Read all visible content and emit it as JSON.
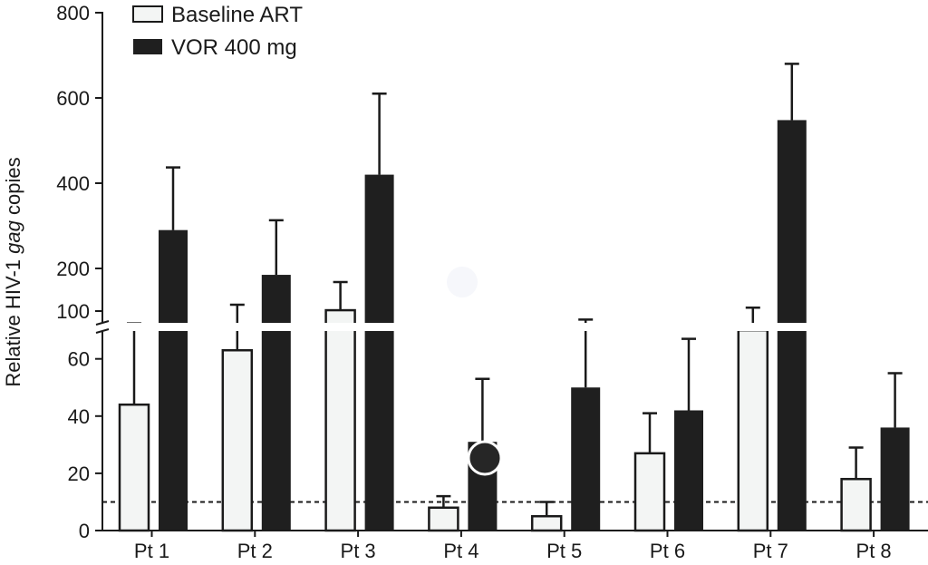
{
  "chart_data": {
    "type": "bar",
    "ylabel_parts": [
      "Relative HIV-1 ",
      "gag",
      " copies"
    ],
    "categories": [
      "Pt 1",
      "Pt 2",
      "Pt 3",
      "Pt 4",
      "Pt 5",
      "Pt 6",
      "Pt 7",
      "Pt 8"
    ],
    "series": [
      {
        "name": "Baseline ART",
        "color": "#f3f5f4",
        "values": [
          44,
          63,
          102,
          8,
          5,
          27,
          70,
          18
        ],
        "err_upper": [
          71,
          115,
          168,
          12,
          10,
          41,
          108,
          29
        ]
      },
      {
        "name": "VOR 400 mg",
        "color": "#1f1f1f",
        "values": [
          290,
          185,
          420,
          31,
          50,
          42,
          548,
          36
        ],
        "err_upper": [
          437,
          313,
          610,
          53,
          80,
          67,
          680,
          55
        ]
      }
    ],
    "y_axis": {
      "lower_segment": {
        "range": [
          0,
          70
        ],
        "ticks": [
          0,
          20,
          40,
          60
        ]
      },
      "upper_segment": {
        "range": [
          80,
          800
        ],
        "ticks": [
          100,
          200,
          400,
          600,
          800
        ]
      },
      "axis_break": true
    },
    "reference_line": {
      "y": 10,
      "style": "dashed"
    },
    "legend_position": "top-left"
  }
}
